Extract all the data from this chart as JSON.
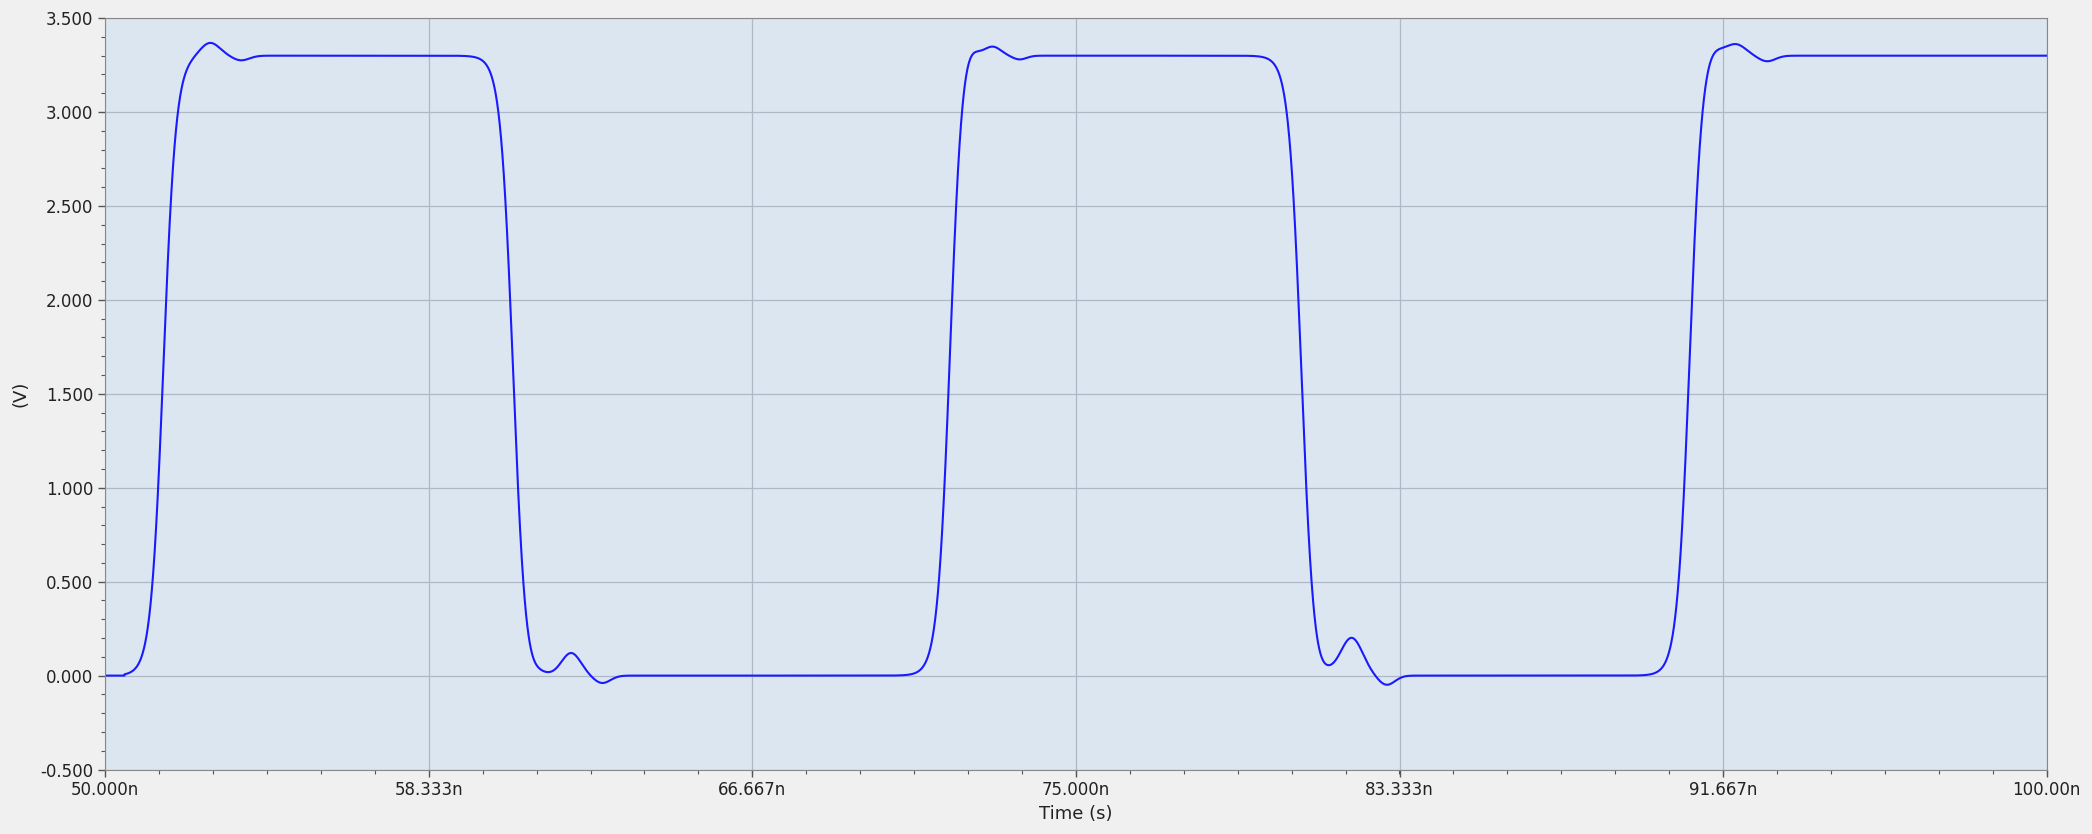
{
  "xlim": [
    5e-08,
    1e-07
  ],
  "ylim": [
    -0.5,
    3.5
  ],
  "xlabel": "Time (s)",
  "ylabel": "(V)",
  "xticks": [
    5e-08,
    5.8333e-08,
    6.6667e-08,
    7.5e-08,
    8.3333e-08,
    9.1667e-08,
    1e-07
  ],
  "xtick_labels": [
    "50.000n",
    "58.333n",
    "66.667n",
    "75.000n",
    "83.333n",
    "91.667n",
    "100.00n"
  ],
  "yticks": [
    -0.5,
    0.0,
    0.5,
    1.0,
    1.5,
    2.0,
    2.5,
    3.0,
    3.5
  ],
  "ytick_labels": [
    "-0.500",
    "0.000",
    "0.500",
    "1.000",
    "1.500",
    "2.000",
    "2.500",
    "3.000",
    "3.500"
  ],
  "line_color": "#1a1aff",
  "bg_color": "#dce6f0",
  "grid_color": "#b0b8c8",
  "fig_bg": "#f0f0f0",
  "line_width": 1.5,
  "tr1": 5.15e-08,
  "tf1": 6.05e-08,
  "tr2": 7.175e-08,
  "tf2": 8.08e-08,
  "tr3": 9.08e-08,
  "v_high": 3.3,
  "rise_time": 1.3e-09,
  "fall_time": 1.3e-09
}
